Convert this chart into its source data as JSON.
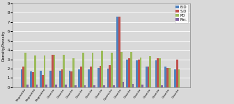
{
  "categories": [
    "Pegmatite",
    "Pegmatite",
    "Pegmatite",
    "Granite",
    "Granite",
    "Granite",
    "Granite",
    "Granite",
    "Granite",
    "Quartzite",
    "Granite",
    "Granite",
    "Granite",
    "Granite",
    "Granite",
    "Granite",
    "Granite"
  ],
  "BD": [
    1.9,
    1.7,
    1.8,
    1.8,
    1.8,
    1.8,
    1.9,
    1.9,
    2.1,
    2.0,
    7.6,
    3.0,
    2.9,
    2.2,
    2.9,
    2.2,
    1.9
  ],
  "SD": [
    2.2,
    1.6,
    1.3,
    3.5,
    1.9,
    1.7,
    2.2,
    2.2,
    2.3,
    2.4,
    7.6,
    3.1,
    3.0,
    2.2,
    3.1,
    2.1,
    3.0
  ],
  "PD": [
    3.7,
    3.4,
    3.4,
    3.5,
    3.5,
    3.1,
    3.7,
    3.7,
    3.9,
    3.7,
    3.8,
    3.8,
    3.2,
    3.3,
    3.1,
    2.1,
    1.9
  ],
  "Por": [
    0.3,
    0.3,
    0.3,
    0.3,
    0.3,
    0.2,
    0.2,
    0.2,
    0.2,
    0.2,
    0.6,
    0.4,
    0.3,
    0.0,
    0.2,
    0.0,
    0.0
  ],
  "colors": {
    "BD": "#4F81BD",
    "SD": "#C0504D",
    "PD": "#9BBB59",
    "Por": "#8064A2"
  },
  "ylabel": "Density/Porosity",
  "ylim": [
    0,
    9
  ],
  "yticks": [
    0,
    1,
    2,
    3,
    4,
    5,
    6,
    7,
    8,
    9
  ],
  "legend_labels": [
    "B.D",
    "S.D",
    "PD",
    "Por."
  ],
  "bg_color": "#D9D9D9",
  "plot_bg_color": "#D9D9D9",
  "grid_color": "#FFFFFF"
}
